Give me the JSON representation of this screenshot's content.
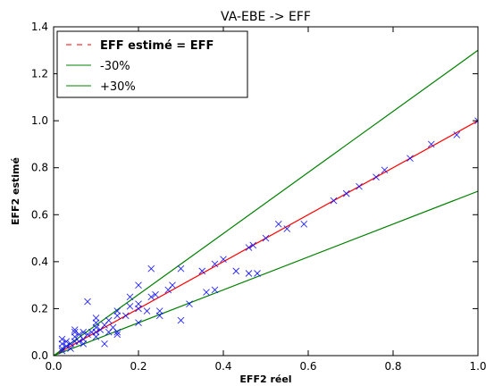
{
  "chart_data": {
    "type": "scatter",
    "title": "VA-EBE -> EFF",
    "xlabel": "EFF2 réel",
    "ylabel": "EFF2 estimé",
    "xlim": [
      0,
      1.0
    ],
    "ylim": [
      0,
      1.4
    ],
    "xticks": [
      "0.0",
      "0.2",
      "0.4",
      "0.6",
      "0.8",
      "1.0"
    ],
    "yticks": [
      "0.0",
      "0.2",
      "0.4",
      "0.6",
      "0.8",
      "1.0",
      "1.2",
      "1.4"
    ],
    "grid": false,
    "legend_position": "top-left",
    "legend": [
      {
        "label": "EFF estimé = EFF",
        "style": "dashed",
        "color": "#ff0000"
      },
      {
        "label": "-30%",
        "style": "solid",
        "color": "#008000"
      },
      {
        "label": "+30%",
        "style": "solid",
        "color": "#008000"
      }
    ],
    "lines": [
      {
        "name": "EFF estimé = EFF",
        "slope": 1.0,
        "color": "#ff0000"
      },
      {
        "name": "-30%",
        "slope": 0.7,
        "color": "#008000"
      },
      {
        "name": "+30%",
        "slope": 1.3,
        "color": "#008000"
      }
    ],
    "scatter_color": "#0000ff",
    "points": [
      [
        0.02,
        0.02
      ],
      [
        0.02,
        0.03
      ],
      [
        0.02,
        0.05
      ],
      [
        0.02,
        0.07
      ],
      [
        0.03,
        0.04
      ],
      [
        0.03,
        0.06
      ],
      [
        0.04,
        0.05
      ],
      [
        0.04,
        0.03
      ],
      [
        0.05,
        0.08
      ],
      [
        0.05,
        0.1
      ],
      [
        0.05,
        0.06
      ],
      [
        0.05,
        0.11
      ],
      [
        0.06,
        0.09
      ],
      [
        0.06,
        0.06
      ],
      [
        0.07,
        0.07
      ],
      [
        0.07,
        0.1
      ],
      [
        0.07,
        0.05
      ],
      [
        0.08,
        0.09
      ],
      [
        0.08,
        0.23
      ],
      [
        0.09,
        0.1
      ],
      [
        0.1,
        0.12
      ],
      [
        0.1,
        0.16
      ],
      [
        0.1,
        0.14
      ],
      [
        0.1,
        0.08
      ],
      [
        0.1,
        0.1
      ],
      [
        0.11,
        0.11
      ],
      [
        0.12,
        0.13
      ],
      [
        0.12,
        0.05
      ],
      [
        0.13,
        0.15
      ],
      [
        0.13,
        0.1
      ],
      [
        0.14,
        0.12
      ],
      [
        0.15,
        0.19
      ],
      [
        0.15,
        0.17
      ],
      [
        0.15,
        0.09
      ],
      [
        0.15,
        0.1
      ],
      [
        0.17,
        0.17
      ],
      [
        0.18,
        0.25
      ],
      [
        0.18,
        0.21
      ],
      [
        0.2,
        0.14
      ],
      [
        0.2,
        0.2
      ],
      [
        0.2,
        0.22
      ],
      [
        0.2,
        0.3
      ],
      [
        0.22,
        0.19
      ],
      [
        0.23,
        0.37
      ],
      [
        0.23,
        0.25
      ],
      [
        0.24,
        0.26
      ],
      [
        0.25,
        0.19
      ],
      [
        0.25,
        0.17
      ],
      [
        0.27,
        0.28
      ],
      [
        0.28,
        0.3
      ],
      [
        0.3,
        0.37
      ],
      [
        0.3,
        0.15
      ],
      [
        0.32,
        0.22
      ],
      [
        0.35,
        0.36
      ],
      [
        0.36,
        0.27
      ],
      [
        0.38,
        0.39
      ],
      [
        0.38,
        0.28
      ],
      [
        0.4,
        0.41
      ],
      [
        0.43,
        0.36
      ],
      [
        0.46,
        0.35
      ],
      [
        0.46,
        0.46
      ],
      [
        0.47,
        0.47
      ],
      [
        0.48,
        0.35
      ],
      [
        0.5,
        0.5
      ],
      [
        0.53,
        0.56
      ],
      [
        0.55,
        0.54
      ],
      [
        0.59,
        0.56
      ],
      [
        0.66,
        0.66
      ],
      [
        0.69,
        0.69
      ],
      [
        0.72,
        0.72
      ],
      [
        0.76,
        0.76
      ],
      [
        0.78,
        0.79
      ],
      [
        0.84,
        0.84
      ],
      [
        0.89,
        0.9
      ],
      [
        0.95,
        0.94
      ],
      [
        1.0,
        1.0
      ]
    ]
  }
}
